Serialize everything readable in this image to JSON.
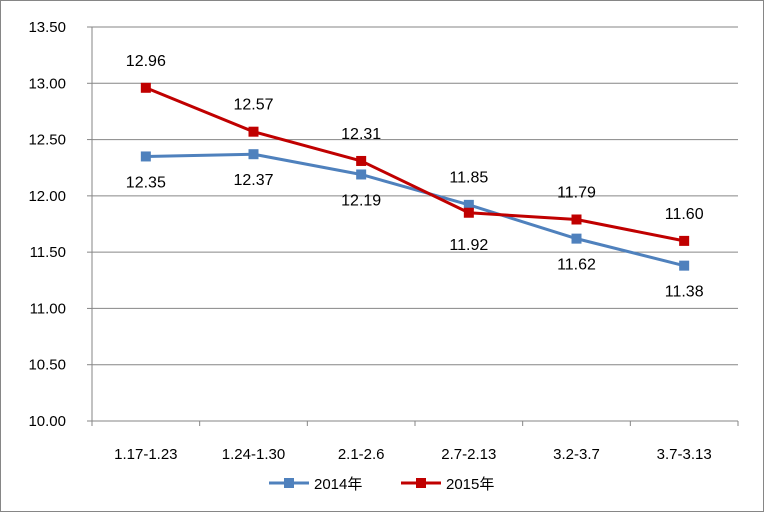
{
  "chart_data": {
    "type": "line",
    "title": "",
    "xlabel": "",
    "ylabel": "",
    "categories": [
      "1.17-1.23",
      "1.24-1.30",
      "2.1-2.6",
      "2.7-2.13",
      "3.2-3.7",
      "3.7-3.13"
    ],
    "ylim": [
      10.0,
      13.5
    ],
    "yticks": [
      "10.00",
      "10.50",
      "11.00",
      "11.50",
      "12.00",
      "12.50",
      "13.00",
      "13.50"
    ],
    "grid": true,
    "legend_position": "bottom",
    "series": [
      {
        "name": "2014年",
        "color": "#4f81bd",
        "values": [
          12.35,
          12.37,
          12.19,
          11.92,
          11.62,
          11.38
        ],
        "labels": [
          "12.35",
          "12.37",
          "12.19",
          "11.92",
          "11.62",
          "11.38"
        ]
      },
      {
        "name": "2015年",
        "color": "#c00000",
        "values": [
          12.96,
          12.57,
          12.31,
          11.85,
          11.79,
          11.6
        ],
        "labels": [
          "12.96",
          "12.57",
          "12.31",
          "11.85",
          "11.79",
          "11.60"
        ]
      }
    ]
  }
}
